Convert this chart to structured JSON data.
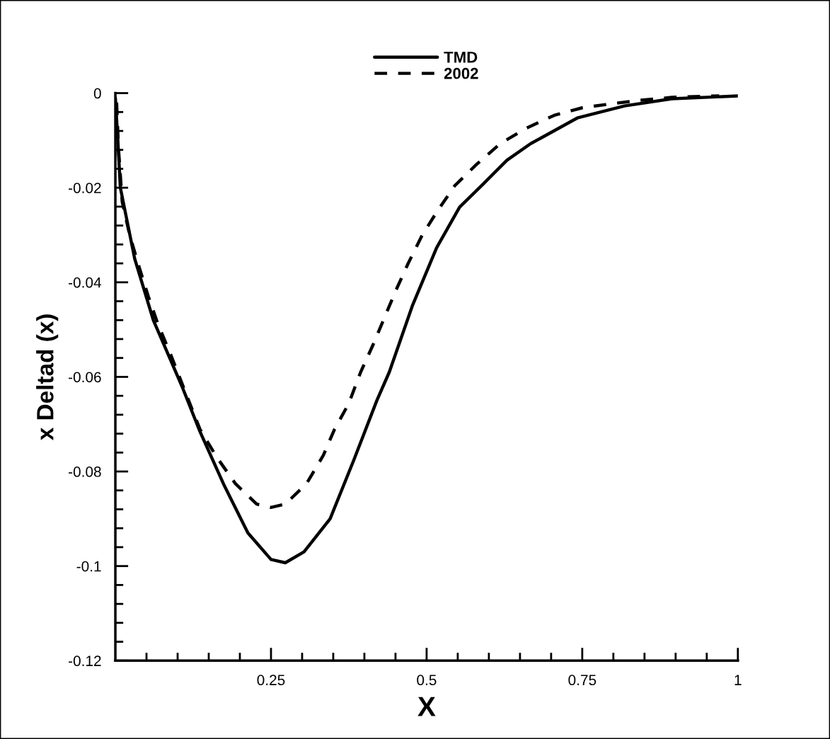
{
  "chart_data": {
    "type": "line",
    "xlabel": "X",
    "ylabel": "x Deltad (x)",
    "xlim": [
      0,
      1
    ],
    "ylim": [
      -0.12,
      0
    ],
    "xticks": [
      {
        "value": 0.05,
        "label": null
      },
      {
        "value": 0.1,
        "label": null
      },
      {
        "value": 0.15,
        "label": null
      },
      {
        "value": 0.2,
        "label": null
      },
      0.25,
      {
        "value": 0.3,
        "label": null
      },
      {
        "value": 0.35,
        "label": null
      },
      {
        "value": 0.4,
        "label": null
      },
      {
        "value": 0.45,
        "label": null
      },
      0.5,
      {
        "value": 0.55,
        "label": null
      },
      {
        "value": 0.6,
        "label": null
      },
      {
        "value": 0.65,
        "label": null
      },
      {
        "value": 0.7,
        "label": null
      },
      0.75,
      {
        "value": 0.8,
        "label": null
      },
      {
        "value": 0.85,
        "label": null
      },
      {
        "value": 0.9,
        "label": null
      },
      {
        "value": 0.95,
        "label": null
      },
      1
    ],
    "yticks": [
      -0.12,
      {
        "value": -0.116,
        "label": null
      },
      {
        "value": -0.112,
        "label": null
      },
      {
        "value": -0.108,
        "label": null
      },
      {
        "value": -0.104,
        "label": null
      },
      -0.1,
      {
        "value": -0.096,
        "label": null
      },
      {
        "value": -0.092,
        "label": null
      },
      {
        "value": -0.088,
        "label": null
      },
      {
        "value": -0.084,
        "label": null
      },
      -0.08,
      {
        "value": -0.076,
        "label": null
      },
      {
        "value": -0.072,
        "label": null
      },
      {
        "value": -0.068,
        "label": null
      },
      {
        "value": -0.064,
        "label": null
      },
      -0.06,
      {
        "value": -0.056,
        "label": null
      },
      {
        "value": -0.052,
        "label": null
      },
      {
        "value": -0.048,
        "label": null
      },
      {
        "value": -0.044,
        "label": null
      },
      -0.04,
      {
        "value": -0.036,
        "label": null
      },
      {
        "value": -0.032,
        "label": null
      },
      {
        "value": -0.028,
        "label": null
      },
      {
        "value": -0.024,
        "label": null
      },
      -0.02,
      {
        "value": -0.016,
        "label": null
      },
      {
        "value": -0.012,
        "label": null
      },
      {
        "value": -0.008,
        "label": null
      },
      {
        "value": -0.004,
        "label": null
      },
      0
    ],
    "grid": false,
    "legend": "top",
    "marker": "none",
    "series": [
      {
        "name": "TMD",
        "color": "#000000",
        "line_style": "solid",
        "x": [
          0.0,
          0.004,
          0.008,
          0.031,
          0.061,
          0.107,
          0.136,
          0.175,
          0.213,
          0.25,
          0.273,
          0.303,
          0.345,
          0.383,
          0.42,
          0.44,
          0.477,
          0.516,
          0.553,
          0.591,
          0.629,
          0.667,
          0.743,
          0.818,
          0.894,
          1.0
        ],
        "values": [
          -0.001,
          -0.01,
          -0.02,
          -0.035,
          -0.048,
          -0.062,
          -0.0716,
          -0.083,
          -0.093,
          -0.0986,
          -0.0993,
          -0.097,
          -0.09,
          -0.0776,
          -0.065,
          -0.059,
          -0.045,
          -0.0327,
          -0.0241,
          -0.0192,
          -0.0142,
          -0.0107,
          -0.0052,
          -0.0027,
          -0.0012,
          -0.0006
        ]
      },
      {
        "name": "2002",
        "color": "#000000",
        "line_style": "dashed",
        "x": [
          0.002,
          0.005,
          0.011,
          0.023,
          0.038,
          0.053,
          0.068,
          0.088,
          0.136,
          0.163,
          0.193,
          0.227,
          0.25,
          0.273,
          0.307,
          0.334,
          0.352,
          0.375,
          0.394,
          0.414,
          0.451,
          0.47,
          0.493,
          0.516,
          0.545,
          0.58,
          0.618,
          0.659,
          0.705,
          0.75,
          0.8,
          0.845,
          0.894,
          0.94,
          0.97
        ],
        "values": [
          -0.002,
          -0.0117,
          -0.023,
          -0.03,
          -0.0367,
          -0.043,
          -0.0487,
          -0.055,
          -0.0711,
          -0.077,
          -0.0826,
          -0.0869,
          -0.0876,
          -0.0869,
          -0.0826,
          -0.0766,
          -0.0711,
          -0.0656,
          -0.059,
          -0.0532,
          -0.0416,
          -0.0361,
          -0.03,
          -0.0252,
          -0.0196,
          -0.0151,
          -0.0107,
          -0.0075,
          -0.0047,
          -0.0031,
          -0.0022,
          -0.0015,
          -0.0009,
          -0.0007,
          -0.0006
        ]
      }
    ]
  }
}
